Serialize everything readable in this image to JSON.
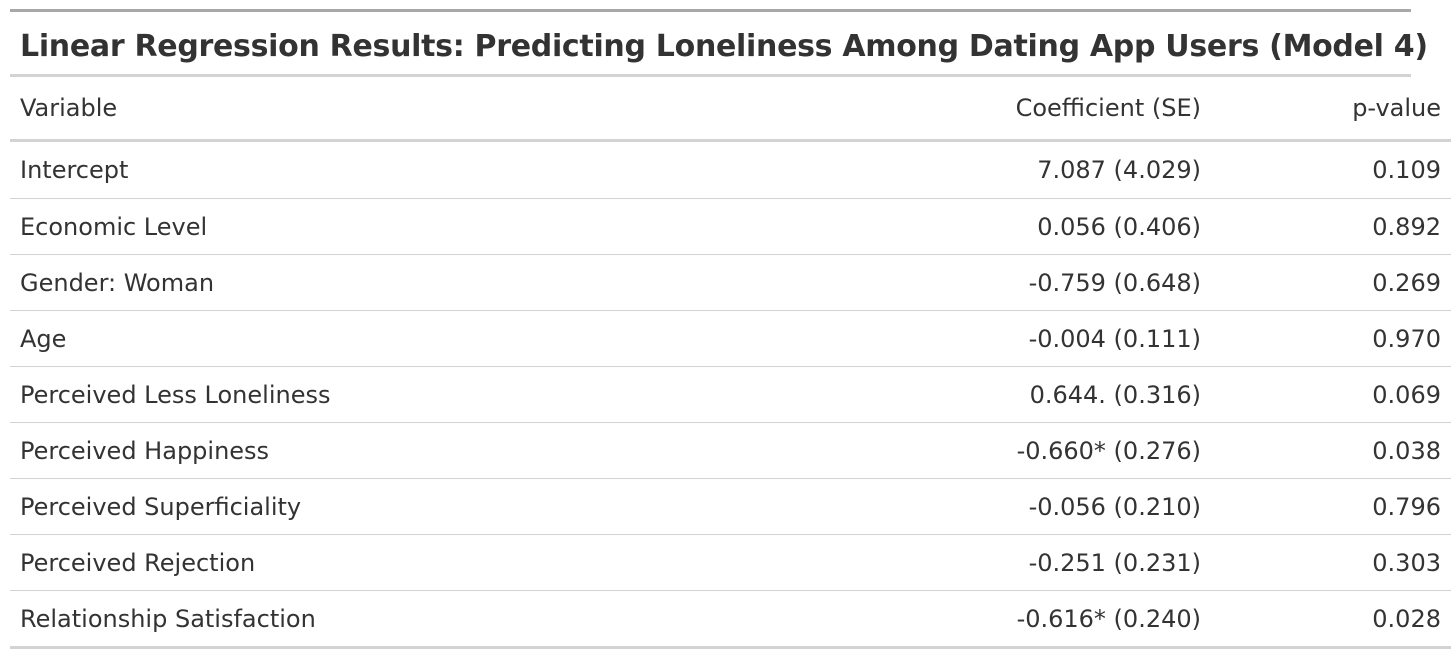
{
  "table": {
    "title": "Linear Regression Results: Predicting Loneliness Among Dating App Users (Model 4)",
    "columns": {
      "variable": "Variable",
      "coefficient": "Coefficient (SE)",
      "p_value": "p-value"
    },
    "rows": [
      {
        "variable": "Intercept",
        "coefficient": "7.087 (4.029)",
        "p_value": "0.109"
      },
      {
        "variable": "Economic Level",
        "coefficient": "0.056 (0.406)",
        "p_value": "0.892"
      },
      {
        "variable": "Gender: Woman",
        "coefficient": "-0.759 (0.648)",
        "p_value": "0.269"
      },
      {
        "variable": "Age",
        "coefficient": "-0.004 (0.111)",
        "p_value": "0.970"
      },
      {
        "variable": "Perceived Less Loneliness",
        "coefficient": "0.644. (0.316)",
        "p_value": "0.069"
      },
      {
        "variable": "Perceived Happiness",
        "coefficient": "-0.660* (0.276)",
        "p_value": "0.038"
      },
      {
        "variable": "Perceived Superficiality",
        "coefficient": "-0.056 (0.210)",
        "p_value": "0.796"
      },
      {
        "variable": "Perceived Rejection",
        "coefficient": "-0.251 (0.231)",
        "p_value": "0.303"
      },
      {
        "variable": "Relationship Satisfaction",
        "coefficient": "-0.616* (0.240)",
        "p_value": "0.028"
      }
    ]
  }
}
